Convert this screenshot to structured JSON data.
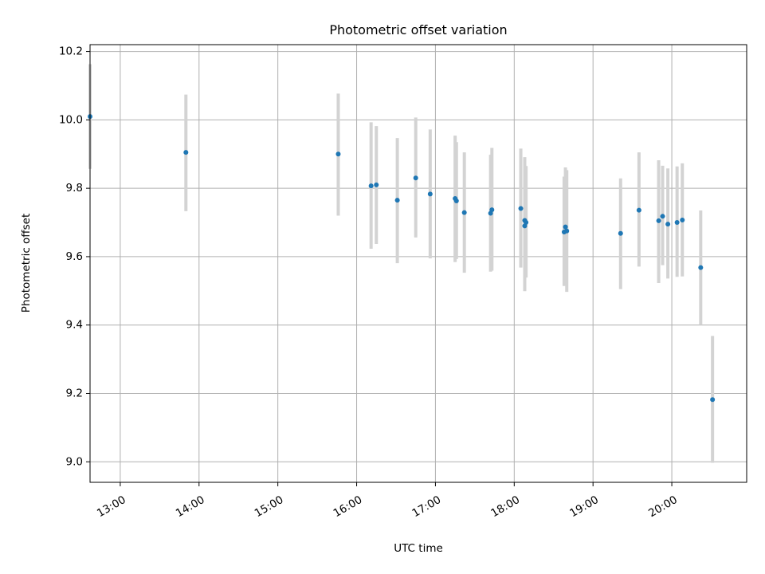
{
  "chart_data": {
    "type": "scatter",
    "title": "Photometric offset variation",
    "xlabel": "UTC time",
    "ylabel": "Photometric offset",
    "x_axis_type": "time",
    "xlim": [
      "12:37",
      "20:57"
    ],
    "ylim": [
      8.94,
      10.22
    ],
    "x_ticks": [
      "13:00",
      "14:00",
      "15:00",
      "16:00",
      "17:00",
      "18:00",
      "19:00",
      "20:00"
    ],
    "y_ticks": [
      9.0,
      9.2,
      9.4,
      9.6,
      9.8,
      10.0,
      10.2
    ],
    "y_tick_labels": [
      "9.0",
      "9.2",
      "9.4",
      "9.6",
      "9.8",
      "10.0",
      "10.2"
    ],
    "grid": true,
    "colors": {
      "marker": "#1f77b4",
      "errorbar": "#d3d3d3",
      "grid": "#b0b0b0"
    },
    "points": [
      {
        "x": "12:37",
        "y": 10.01,
        "ylow": 9.857,
        "yhigh": 10.163
      },
      {
        "x": "13:50",
        "y": 9.905,
        "ylow": 9.733,
        "yhigh": 10.074
      },
      {
        "x": "15:46",
        "y": 9.9,
        "ylow": 9.72,
        "yhigh": 10.077
      },
      {
        "x": "16:11",
        "y": 9.807,
        "ylow": 9.623,
        "yhigh": 9.993
      },
      {
        "x": "16:15",
        "y": 9.81,
        "ylow": 9.637,
        "yhigh": 9.982
      },
      {
        "x": "16:31",
        "y": 9.765,
        "ylow": 9.581,
        "yhigh": 9.947
      },
      {
        "x": "16:45",
        "y": 9.83,
        "ylow": 9.656,
        "yhigh": 10.007
      },
      {
        "x": "16:56",
        "y": 9.783,
        "ylow": 9.595,
        "yhigh": 9.972
      },
      {
        "x": "17:15",
        "y": 9.77,
        "ylow": 9.584,
        "yhigh": 9.954
      },
      {
        "x": "17:16",
        "y": 9.763,
        "ylow": 9.593,
        "yhigh": 9.935
      },
      {
        "x": "17:22",
        "y": 9.729,
        "ylow": 9.553,
        "yhigh": 9.905
      },
      {
        "x": "17:42",
        "y": 9.727,
        "ylow": 9.556,
        "yhigh": 9.898
      },
      {
        "x": "17:43",
        "y": 9.737,
        "ylow": 9.559,
        "yhigh": 9.918
      },
      {
        "x": "18:05",
        "y": 9.741,
        "ylow": 9.568,
        "yhigh": 9.916
      },
      {
        "x": "18:08",
        "y": 9.706,
        "ylow": 9.527,
        "yhigh": 9.891
      },
      {
        "x": "18:08",
        "y": 9.69,
        "ylow": 9.499,
        "yhigh": 9.88
      },
      {
        "x": "18:09",
        "y": 9.7,
        "ylow": 9.539,
        "yhigh": 9.865
      },
      {
        "x": "18:38",
        "y": 9.672,
        "ylow": 9.514,
        "yhigh": 9.834
      },
      {
        "x": "18:39",
        "y": 9.687,
        "ylow": 9.519,
        "yhigh": 9.861
      },
      {
        "x": "18:40",
        "y": 9.675,
        "ylow": 9.497,
        "yhigh": 9.853
      },
      {
        "x": "19:21",
        "y": 9.668,
        "ylow": 9.505,
        "yhigh": 9.829
      },
      {
        "x": "19:35",
        "y": 9.736,
        "ylow": 9.571,
        "yhigh": 9.905
      },
      {
        "x": "19:50",
        "y": 9.705,
        "ylow": 9.523,
        "yhigh": 9.882
      },
      {
        "x": "19:53",
        "y": 9.718,
        "ylow": 9.575,
        "yhigh": 9.866
      },
      {
        "x": "19:57",
        "y": 9.695,
        "ylow": 9.536,
        "yhigh": 9.858
      },
      {
        "x": "20:04",
        "y": 9.7,
        "ylow": 9.541,
        "yhigh": 9.864
      },
      {
        "x": "20:08",
        "y": 9.707,
        "ylow": 9.542,
        "yhigh": 9.873
      },
      {
        "x": "20:22",
        "y": 9.568,
        "ylow": 9.4,
        "yhigh": 9.735
      },
      {
        "x": "20:31",
        "y": 9.182,
        "ylow": 8.997,
        "yhigh": 9.368
      }
    ]
  }
}
